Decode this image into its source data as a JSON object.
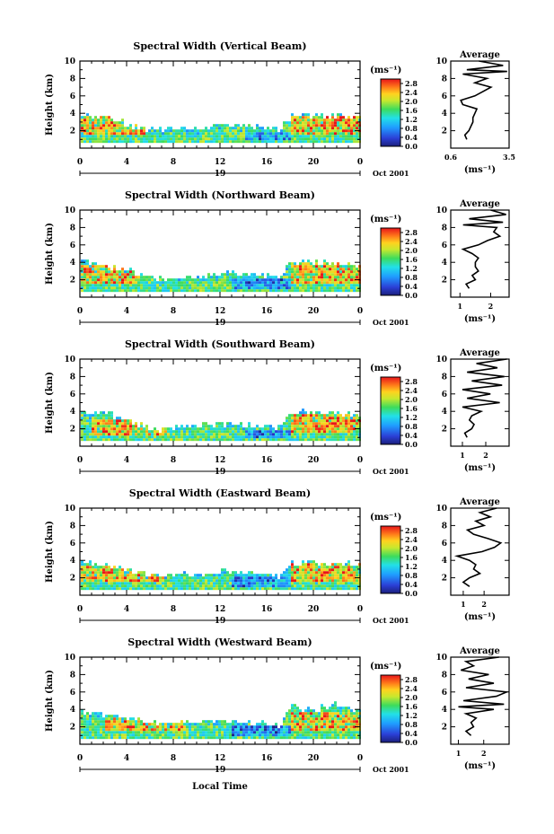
{
  "figure": {
    "x_label": "Local Time",
    "date_label": "Oct 2001",
    "day_label": "19"
  },
  "chart_data": [
    {
      "type": "heatmap",
      "title": "Spectral Width (Vertical Beam)",
      "ylabel": "Height (km)",
      "xlim": [
        0,
        24
      ],
      "ylim": [
        0,
        10
      ],
      "xticks": [
        "0",
        "4",
        "8",
        "12",
        "16",
        "20",
        "0"
      ],
      "yticks": [
        "2",
        "4",
        "6",
        "8",
        "10"
      ],
      "colorbar": {
        "unit": "(ms⁻¹)",
        "ticks": [
          "0.0",
          "0.4",
          "0.8",
          "1.2",
          "1.6",
          "2.0",
          "2.4",
          "2.8"
        ],
        "range": [
          0,
          3.0
        ]
      },
      "echo_top_km": [
        3.8,
        3.6,
        3.4,
        3.2,
        2.6,
        2.2,
        2.0,
        1.9,
        2.0,
        2.1,
        2.2,
        2.3,
        2.4,
        2.5,
        2.5,
        2.4,
        2.3,
        2.0,
        3.6,
        3.7,
        3.6,
        3.5,
        3.4,
        3.4,
        3.3
      ],
      "hot_regions": [
        {
          "t": [
            0,
            5.5
          ],
          "z": [
            1.5,
            3.5
          ]
        },
        {
          "t": [
            18,
            24
          ],
          "z": [
            1.5,
            3.5
          ]
        }
      ],
      "cold_regions": [
        {
          "t": [
            14,
            18
          ],
          "z": [
            0.8,
            1.8
          ]
        }
      ],
      "average": {
        "xlabel": "(ms⁻¹)",
        "xticks": [
          "0.6",
          "3.5"
        ],
        "xlim": [
          0.6,
          3.5
        ],
        "height": [
          1,
          1.5,
          2,
          2.5,
          3,
          3.5,
          4,
          4.5,
          5,
          5.5,
          6,
          6.5,
          7,
          7.5,
          8,
          8.5,
          8.8,
          9,
          9.5,
          10
        ],
        "value": [
          1.4,
          1.3,
          1.5,
          1.6,
          1.7,
          1.7,
          1.8,
          1.9,
          1.2,
          1.1,
          1.8,
          2.2,
          2.6,
          1.8,
          2.4,
          1.2,
          3.4,
          1.4,
          3.2,
          2.0
        ]
      }
    },
    {
      "type": "heatmap",
      "title": "Spectral Width (Northward Beam)",
      "ylabel": "Height (km)",
      "xlim": [
        0,
        24
      ],
      "ylim": [
        0,
        10
      ],
      "xticks": [
        "0",
        "4",
        "8",
        "12",
        "16",
        "20",
        "0"
      ],
      "yticks": [
        "2",
        "4",
        "6",
        "8",
        "10"
      ],
      "colorbar": {
        "unit": "(ms⁻¹)",
        "ticks": [
          "0.0",
          "0.4",
          "0.8",
          "1.2",
          "1.6",
          "2.0",
          "2.4",
          "2.8"
        ],
        "range": [
          0,
          3.0
        ]
      },
      "echo_top_km": [
        3.9,
        3.7,
        3.5,
        3.3,
        3.0,
        2.4,
        2.0,
        1.9,
        2.0,
        2.2,
        2.3,
        2.5,
        2.6,
        2.6,
        2.5,
        2.4,
        2.3,
        2.1,
        3.7,
        3.9,
        3.8,
        3.8,
        3.7,
        3.6,
        3.5
      ],
      "hot_regions": [
        {
          "t": [
            0,
            5
          ],
          "z": [
            1.5,
            3.6
          ]
        },
        {
          "t": [
            18,
            24
          ],
          "z": [
            1.5,
            3.8
          ]
        }
      ],
      "cold_regions": [
        {
          "t": [
            13,
            18
          ],
          "z": [
            0.8,
            2.0
          ]
        }
      ],
      "average": {
        "xlabel": "(ms⁻¹)",
        "xticks": [
          "1",
          "2"
        ],
        "xlim": [
          0.7,
          2.6
        ],
        "height": [
          1,
          1.5,
          2,
          2.5,
          3,
          3.5,
          4,
          4.5,
          5,
          5.5,
          6,
          6.5,
          7,
          7.5,
          8,
          8.3,
          8.6,
          9,
          9.5,
          10
        ],
        "value": [
          1.3,
          1.2,
          1.5,
          1.4,
          1.6,
          1.5,
          1.5,
          1.6,
          1.4,
          1.1,
          1.6,
          1.9,
          2.3,
          2.1,
          2.2,
          1.1,
          2.4,
          1.3,
          2.5,
          2.0
        ]
      }
    },
    {
      "type": "heatmap",
      "title": "Spectral Width (Southward Beam)",
      "ylabel": "Height (km)",
      "xlim": [
        0,
        24
      ],
      "ylim": [
        0,
        10
      ],
      "xticks": [
        "0",
        "4",
        "8",
        "12",
        "16",
        "20",
        "0"
      ],
      "yticks": [
        "2",
        "4",
        "6",
        "8",
        "10"
      ],
      "colorbar": {
        "unit": "(ms⁻¹)",
        "ticks": [
          "0.0",
          "0.4",
          "0.8",
          "1.2",
          "1.6",
          "2.0",
          "2.4",
          "2.8"
        ],
        "range": [
          0,
          3.0
        ]
      },
      "echo_top_km": [
        3.9,
        3.7,
        3.5,
        3.3,
        2.8,
        2.2,
        1.9,
        1.8,
        1.9,
        2.1,
        2.2,
        2.3,
        2.4,
        2.4,
        2.3,
        2.2,
        2.1,
        1.9,
        3.6,
        3.8,
        3.8,
        3.7,
        3.6,
        3.6,
        3.5
      ],
      "hot_regions": [
        {
          "t": [
            1,
            7.5
          ],
          "z": [
            1.2,
            2.8
          ]
        },
        {
          "t": [
            18,
            24
          ],
          "z": [
            1.5,
            3.6
          ]
        }
      ],
      "cold_regions": [
        {
          "t": [
            14,
            18
          ],
          "z": [
            0.8,
            1.8
          ]
        }
      ],
      "average": {
        "xlabel": "(ms⁻¹)",
        "xticks": [
          "1",
          "2"
        ],
        "xlim": [
          0.5,
          3.0
        ],
        "height": [
          1,
          1.5,
          2,
          2.5,
          3,
          3.5,
          4,
          4.5,
          5,
          5.5,
          6,
          6.5,
          7,
          7.5,
          8,
          8.5,
          9,
          9.5,
          10
        ],
        "value": [
          1.2,
          1.1,
          1.4,
          1.5,
          1.3,
          1.4,
          1.8,
          1.0,
          2.6,
          1.2,
          2.2,
          1.0,
          2.7,
          1.4,
          2.8,
          1.2,
          2.5,
          1.6,
          2.9
        ]
      }
    },
    {
      "type": "heatmap",
      "title": "Spectral Width (Eastward Beam)",
      "ylabel": "Height (km)",
      "xlim": [
        0,
        24
      ],
      "ylim": [
        0,
        10
      ],
      "xticks": [
        "0",
        "4",
        "8",
        "12",
        "16",
        "20",
        "0"
      ],
      "yticks": [
        "2",
        "4",
        "6",
        "8",
        "10"
      ],
      "colorbar": {
        "unit": "(ms⁻¹)",
        "ticks": [
          "0.0",
          "0.4",
          "0.8",
          "1.2",
          "1.6",
          "2.0",
          "2.4",
          "2.8"
        ],
        "range": [
          0,
          3.0
        ]
      },
      "echo_top_km": [
        3.5,
        3.4,
        3.3,
        3.1,
        2.8,
        2.5,
        2.2,
        2.0,
        2.1,
        2.2,
        2.3,
        2.4,
        2.5,
        2.5,
        2.4,
        2.3,
        2.2,
        2.0,
        3.5,
        3.7,
        3.6,
        3.6,
        3.5,
        3.4,
        3.4
      ],
      "hot_regions": [
        {
          "t": [
            0,
            7
          ],
          "z": [
            1.3,
            3.2
          ]
        },
        {
          "t": [
            18,
            24
          ],
          "z": [
            1.5,
            3.4
          ]
        }
      ],
      "cold_regions": [
        {
          "t": [
            13,
            18
          ],
          "z": [
            0.8,
            1.9
          ]
        }
      ],
      "average": {
        "xlabel": "(ms⁻¹)",
        "xticks": [
          "1",
          "2"
        ],
        "xlim": [
          0.4,
          3.2
        ],
        "height": [
          1,
          1.5,
          2,
          2.5,
          3,
          3.5,
          4,
          4.5,
          5,
          5.5,
          6,
          6.5,
          7,
          7.5,
          8,
          8.5,
          9,
          9.5,
          10
        ],
        "value": [
          1.3,
          1.0,
          1.3,
          1.8,
          1.5,
          1.6,
          1.3,
          0.7,
          1.9,
          2.5,
          2.8,
          2.2,
          1.5,
          1.2,
          2.0,
          1.6,
          2.3,
          1.8,
          2.6
        ]
      }
    },
    {
      "type": "heatmap",
      "title": "Spectral Width (Westward Beam)",
      "ylabel": "Height (km)",
      "xlim": [
        0,
        24
      ],
      "ylim": [
        0,
        10
      ],
      "xticks": [
        "0",
        "4",
        "8",
        "12",
        "16",
        "20",
        "0"
      ],
      "yticks": [
        "2",
        "4",
        "6",
        "8",
        "10"
      ],
      "colorbar": {
        "unit": "(ms⁻¹)",
        "ticks": [
          "0.0",
          "0.4",
          "0.8",
          "1.2",
          "1.6",
          "2.0",
          "2.4",
          "2.8"
        ],
        "range": [
          0,
          3.0
        ]
      },
      "echo_top_km": [
        3.4,
        3.3,
        3.2,
        3.0,
        2.8,
        2.6,
        2.4,
        2.2,
        2.2,
        2.3,
        2.4,
        2.5,
        2.5,
        2.5,
        2.4,
        2.3,
        2.2,
        2.0,
        4.3,
        4.0,
        3.8,
        4.2,
        4.5,
        4.0,
        3.8
      ],
      "hot_regions": [
        {
          "t": [
            2,
            9
          ],
          "z": [
            1.5,
            3.0
          ]
        },
        {
          "t": [
            18,
            24
          ],
          "z": [
            1.5,
            3.5
          ]
        }
      ],
      "cold_regions": [
        {
          "t": [
            13,
            18
          ],
          "z": [
            0.8,
            1.9
          ]
        }
      ],
      "average": {
        "xlabel": "(ms⁻¹)",
        "xticks": [
          "1",
          "2"
        ],
        "xlim": [
          0.7,
          3.0
        ],
        "height": [
          1,
          1.5,
          2,
          2.5,
          3,
          3.5,
          4,
          4.3,
          4.6,
          5,
          5.5,
          6,
          6.5,
          7,
          7.5,
          8,
          8.5,
          9,
          9.5,
          10
        ],
        "value": [
          1.5,
          1.3,
          1.6,
          1.5,
          1.7,
          1.3,
          2.4,
          1.0,
          2.8,
          1.2,
          2.5,
          2.9,
          1.3,
          2.4,
          1.4,
          2.2,
          1.1,
          1.6,
          1.3,
          2.6
        ]
      }
    }
  ]
}
